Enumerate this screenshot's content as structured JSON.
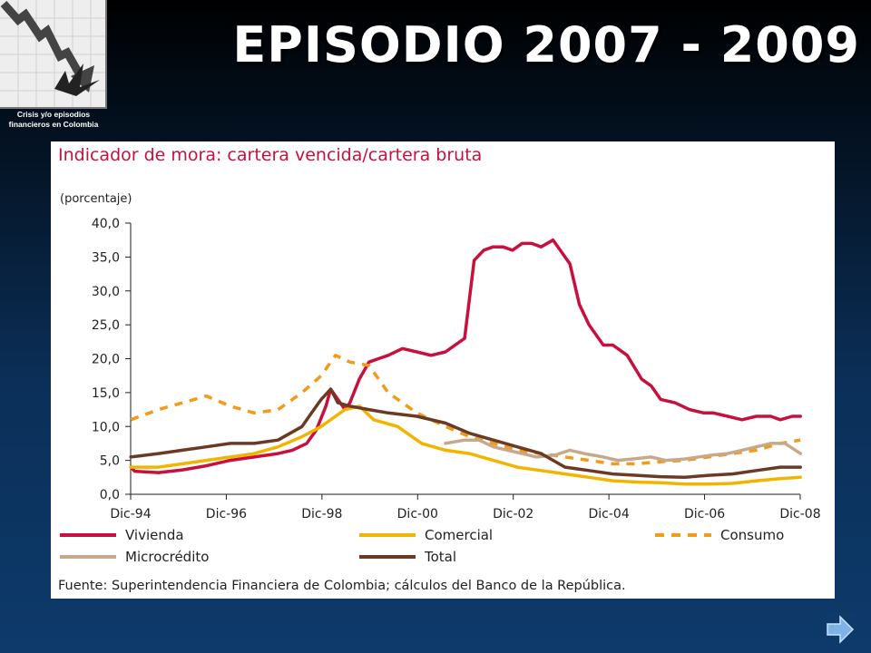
{
  "slide": {
    "title": "EPISODIO 2007 - 2009",
    "logo_caption_line1": "Crisis y/o episodios",
    "logo_caption_line2": "financieros en Colombia"
  },
  "chart_data": {
    "type": "line",
    "title": "Indicador de mora: cartera vencida/cartera bruta",
    "ylabel": "(porcentaje)",
    "ylim": [
      0,
      40
    ],
    "yticks": [
      "0,0",
      "5,0",
      "10,0",
      "15,0",
      "20,0",
      "25,0",
      "30,0",
      "35,0",
      "40,0"
    ],
    "yticks_values": [
      0,
      5,
      10,
      15,
      20,
      25,
      30,
      35,
      40
    ],
    "xlim": [
      1994.917,
      2008.917
    ],
    "xticks": [
      "Dic-94",
      "Dic-96",
      "Dic-98",
      "Dic-00",
      "Dic-02",
      "Dic-04",
      "Dic-06",
      "Dic-08"
    ],
    "xticks_values": [
      1994.917,
      1996.917,
      1998.917,
      2000.917,
      2002.917,
      2004.917,
      2006.917,
      2008.917
    ],
    "legend_position": "bottom",
    "source": "Fuente: Superintendencia Financiera de Colombia; cálculos del Banco de la República.",
    "series": [
      {
        "name": "Vivienda",
        "color": "#c8103e",
        "dash": "solid",
        "x": [
          1994.92,
          1995.0,
          1995.5,
          1996.0,
          1996.5,
          1997.0,
          1997.5,
          1998.0,
          1998.3,
          1998.6,
          1998.8,
          1999.0,
          1999.1,
          1999.25,
          1999.4,
          1999.5,
          1999.7,
          1999.9,
          2000.1,
          2000.3,
          2000.6,
          2000.9,
          2001.2,
          2001.5,
          2001.9,
          2002.1,
          2002.3,
          2002.5,
          2002.7,
          2002.9,
          2003.1,
          2003.3,
          2003.5,
          2003.75,
          2004.0,
          2004.1,
          2004.3,
          2004.5,
          2004.8,
          2005.0,
          2005.3,
          2005.6,
          2005.8,
          2006.0,
          2006.3,
          2006.6,
          2006.9,
          2007.1,
          2007.4,
          2007.7,
          2008.0,
          2008.3,
          2008.5,
          2008.75,
          2008.92
        ],
        "values": [
          4.0,
          3.4,
          3.2,
          3.6,
          4.2,
          5.0,
          5.5,
          6.0,
          6.5,
          7.5,
          9.5,
          13.0,
          15.5,
          14.0,
          12.5,
          13.5,
          17.0,
          19.5,
          20.0,
          20.5,
          21.5,
          21.0,
          20.5,
          21.0,
          23.0,
          34.5,
          36.0,
          36.5,
          36.5,
          36.0,
          37.0,
          37.0,
          36.5,
          37.5,
          35.0,
          34.0,
          28.0,
          25.0,
          22.0,
          22.0,
          20.5,
          17.0,
          16.0,
          14.0,
          13.5,
          12.5,
          12.0,
          12.0,
          11.5,
          11.0,
          11.5,
          11.5,
          11.0,
          11.5,
          11.5
        ]
      },
      {
        "name": "Comercial",
        "color": "#f1b500",
        "dash": "solid",
        "x": [
          1994.92,
          1995.5,
          1996.0,
          1996.5,
          1997.0,
          1997.5,
          1998.0,
          1998.5,
          1998.9,
          1999.2,
          1999.4,
          1999.7,
          2000.0,
          2000.5,
          2001.0,
          2001.5,
          2002.0,
          2002.5,
          2003.0,
          2003.5,
          2004.0,
          2004.5,
          2005.0,
          2005.5,
          2006.0,
          2006.5,
          2007.0,
          2007.5,
          2008.0,
          2008.5,
          2008.92
        ],
        "values": [
          4.0,
          4.0,
          4.5,
          5.0,
          5.5,
          6.0,
          7.0,
          8.5,
          10.0,
          11.5,
          12.5,
          13.0,
          11.0,
          10.0,
          7.5,
          6.5,
          6.0,
          5.0,
          4.0,
          3.5,
          3.0,
          2.5,
          2.0,
          1.8,
          1.7,
          1.5,
          1.5,
          1.6,
          2.0,
          2.3,
          2.5
        ]
      },
      {
        "name": "Consumo",
        "color": "#f39a18",
        "dash": "dashed",
        "x": [
          1994.92,
          1995.5,
          1996.0,
          1996.5,
          1997.0,
          1997.5,
          1998.0,
          1998.5,
          1998.9,
          1999.2,
          1999.5,
          1999.9,
          2000.3,
          2000.9,
          2001.5,
          2002.0,
          2002.5,
          2003.0,
          2003.5,
          2004.0,
          2004.5,
          2005.0,
          2005.5,
          2006.0,
          2006.5,
          2007.0,
          2007.5,
          2008.0,
          2008.5,
          2008.92
        ],
        "values": [
          11.0,
          12.5,
          13.5,
          14.5,
          13.0,
          12.0,
          12.5,
          15.0,
          17.5,
          20.5,
          19.5,
          19.0,
          15.0,
          12.0,
          10.0,
          8.5,
          7.5,
          6.5,
          6.0,
          5.5,
          5.0,
          4.5,
          4.5,
          4.8,
          5.0,
          5.5,
          6.0,
          6.5,
          7.5,
          8.0
        ]
      },
      {
        "name": "Microcrédito",
        "color": "#c6a98a",
        "dash": "solid",
        "x": [
          2001.5,
          2001.9,
          2002.2,
          2002.5,
          2002.8,
          2003.1,
          2003.4,
          2003.8,
          2004.1,
          2004.4,
          2004.8,
          2005.1,
          2005.4,
          2005.8,
          2006.1,
          2006.5,
          2006.8,
          2007.1,
          2007.4,
          2007.7,
          2008.0,
          2008.3,
          2008.6,
          2008.92
        ],
        "values": [
          7.5,
          8.0,
          8.0,
          7.0,
          6.5,
          6.0,
          5.5,
          5.8,
          6.5,
          6.0,
          5.5,
          5.0,
          5.2,
          5.5,
          5.0,
          5.2,
          5.5,
          5.8,
          6.0,
          6.5,
          7.0,
          7.5,
          7.5,
          6.0
        ]
      },
      {
        "name": "Total",
        "color": "#6b3a24",
        "dash": "solid",
        "x": [
          1994.92,
          1995.5,
          1996.0,
          1996.5,
          1997.0,
          1997.5,
          1998.0,
          1998.5,
          1998.7,
          1998.9,
          1999.1,
          1999.25,
          1999.5,
          1999.9,
          2000.3,
          2000.9,
          2001.5,
          2002.0,
          2002.5,
          2003.0,
          2003.5,
          2004.0,
          2004.5,
          2005.0,
          2005.5,
          2006.0,
          2006.5,
          2007.0,
          2007.5,
          2008.0,
          2008.5,
          2008.92
        ],
        "values": [
          5.5,
          6.0,
          6.5,
          7.0,
          7.5,
          7.5,
          8.0,
          10.0,
          12.0,
          14.0,
          15.5,
          13.5,
          13.0,
          12.5,
          12.0,
          11.5,
          10.5,
          9.0,
          8.0,
          7.0,
          6.0,
          4.0,
          3.5,
          3.0,
          2.8,
          2.6,
          2.5,
          2.8,
          3.0,
          3.5,
          4.0,
          4.0
        ]
      }
    ]
  }
}
